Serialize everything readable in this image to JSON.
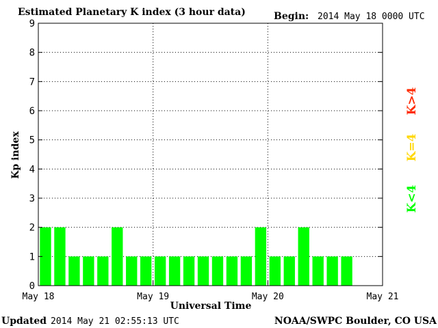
{
  "header": {
    "title": "Estimated Planetary K index (3 hour data)",
    "begin_label": "Begin:",
    "begin_value": "2014 May 18 0000 UTC"
  },
  "footer": {
    "updated_label": "Updated",
    "updated_value": "2014 May 21 02:55:13 UTC",
    "source": "NOAA/SWPC Boulder, CO USA"
  },
  "legend": {
    "items": [
      {
        "label": "K<4",
        "color": "#00ff00"
      },
      {
        "label": "K=4",
        "color": "#ffd700"
      },
      {
        "label": "K>4",
        "color": "#ff2a00"
      }
    ]
  },
  "chart_data": {
    "type": "bar",
    "title": "Estimated Planetary K index (3 hour data)",
    "xlabel": "Universal Time",
    "ylabel": "Kp index",
    "ylim": [
      0,
      9
    ],
    "yticks": [
      0,
      1,
      2,
      3,
      4,
      5,
      6,
      7,
      8,
      9
    ],
    "xlim": [
      0,
      24
    ],
    "xtick_labels": [
      "May 18",
      "May 19",
      "May 20",
      "May 21"
    ],
    "grid": true,
    "interval_hours": 3,
    "colors": {
      "below4": "#00ff00",
      "eq4": "#ffd700",
      "above4": "#ff2a00"
    },
    "values": [
      2,
      2,
      1,
      1,
      1,
      2,
      1,
      1,
      1,
      1,
      1,
      1,
      1,
      1,
      1,
      2,
      1,
      1,
      2,
      1,
      1,
      1
    ]
  }
}
